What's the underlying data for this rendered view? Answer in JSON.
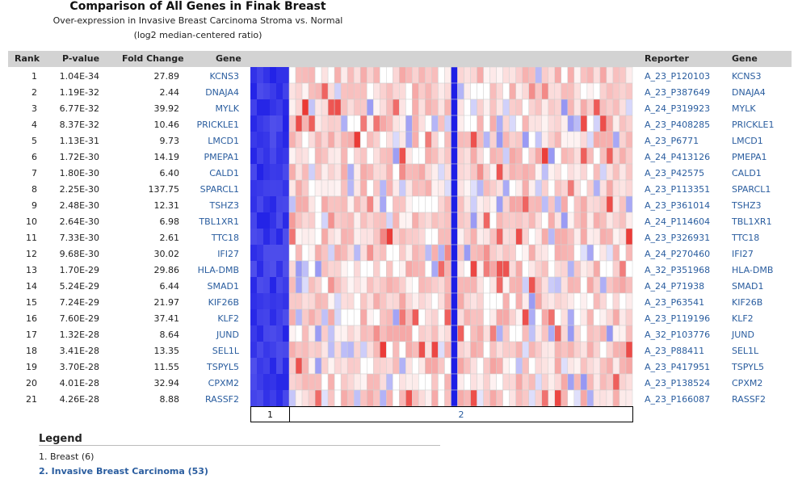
{
  "header": {
    "title": "Comparison of All Genes in Finak Breast",
    "subtitle": "Over-expression in Invasive Breast Carcinoma Stroma vs. Normal",
    "subtitle2": "(log2 median-centered ratio)"
  },
  "columns": {
    "rank": "Rank",
    "pvalue": "P-value",
    "fold": "Fold Change",
    "gene": "Gene",
    "reporter": "Reporter",
    "gene2": "Gene"
  },
  "rows": [
    {
      "rank": "1",
      "pvalue": "1.04E-34",
      "fold": "27.89",
      "gene": "KCNS3",
      "reporter": "A_23_P120103"
    },
    {
      "rank": "2",
      "pvalue": "1.19E-32",
      "fold": "2.44",
      "gene": "DNAJA4",
      "reporter": "A_23_P387649"
    },
    {
      "rank": "3",
      "pvalue": "6.77E-32",
      "fold": "39.92",
      "gene": "MYLK",
      "reporter": "A_24_P319923"
    },
    {
      "rank": "4",
      "pvalue": "8.37E-32",
      "fold": "10.46",
      "gene": "PRICKLE1",
      "reporter": "A_23_P408285"
    },
    {
      "rank": "5",
      "pvalue": "1.13E-31",
      "fold": "9.73",
      "gene": "LMCD1",
      "reporter": "A_23_P6771"
    },
    {
      "rank": "6",
      "pvalue": "1.72E-30",
      "fold": "14.19",
      "gene": "PMEPA1",
      "reporter": "A_24_P413126"
    },
    {
      "rank": "7",
      "pvalue": "1.80E-30",
      "fold": "6.40",
      "gene": "CALD1",
      "reporter": "A_23_P42575"
    },
    {
      "rank": "8",
      "pvalue": "2.25E-30",
      "fold": "137.75",
      "gene": "SPARCL1",
      "reporter": "A_23_P113351"
    },
    {
      "rank": "9",
      "pvalue": "2.48E-30",
      "fold": "12.31",
      "gene": "TSHZ3",
      "reporter": "A_23_P361014"
    },
    {
      "rank": "10",
      "pvalue": "2.64E-30",
      "fold": "6.98",
      "gene": "TBL1XR1",
      "reporter": "A_24_P114604"
    },
    {
      "rank": "11",
      "pvalue": "7.33E-30",
      "fold": "2.61",
      "gene": "TTC18",
      "reporter": "A_23_P326931"
    },
    {
      "rank": "12",
      "pvalue": "9.68E-30",
      "fold": "30.02",
      "gene": "IFI27",
      "reporter": "A_24_P270460"
    },
    {
      "rank": "13",
      "pvalue": "1.70E-29",
      "fold": "29.86",
      "gene": "HLA-DMB",
      "reporter": "A_32_P351968"
    },
    {
      "rank": "14",
      "pvalue": "5.24E-29",
      "fold": "6.44",
      "gene": "SMAD1",
      "reporter": "A_24_P71938"
    },
    {
      "rank": "15",
      "pvalue": "7.24E-29",
      "fold": "21.97",
      "gene": "KIF26B",
      "reporter": "A_23_P63541"
    },
    {
      "rank": "16",
      "pvalue": "7.60E-29",
      "fold": "37.41",
      "gene": "KLF2",
      "reporter": "A_23_P119196"
    },
    {
      "rank": "17",
      "pvalue": "1.32E-28",
      "fold": "8.64",
      "gene": "JUND",
      "reporter": "A_32_P103776"
    },
    {
      "rank": "18",
      "pvalue": "3.41E-28",
      "fold": "13.35",
      "gene": "SEL1L",
      "reporter": "A_23_P88411"
    },
    {
      "rank": "19",
      "pvalue": "3.70E-28",
      "fold": "11.55",
      "gene": "TSPYL5",
      "reporter": "A_23_P417951"
    },
    {
      "rank": "20",
      "pvalue": "4.01E-28",
      "fold": "32.94",
      "gene": "CPXM2",
      "reporter": "A_23_P138524"
    },
    {
      "rank": "21",
      "pvalue": "4.26E-28",
      "fold": "8.88",
      "gene": "RASSF2",
      "reporter": "A_23_P166087"
    }
  ],
  "groups": [
    {
      "label": "1",
      "samples": 6
    },
    {
      "label": "2",
      "samples": 53
    }
  ],
  "legend": {
    "title": "Legend",
    "items": [
      "1. Breast (6)",
      "2. Invasive Breast Carcinoma (53)"
    ]
  },
  "colors": {
    "accent_link": "#2a5d9f",
    "high": "#e8201c",
    "low": "#1e1ee6",
    "neutral": "#ffffff"
  },
  "chart_data": {
    "type": "heatmap",
    "rows": [
      "KCNS3",
      "DNAJA4",
      "MYLK",
      "PRICKLE1",
      "LMCD1",
      "PMEPA1",
      "CALD1",
      "SPARCL1",
      "TSHZ3",
      "TBL1XR1",
      "TTC18",
      "IFI27",
      "HLA-DMB",
      "SMAD1",
      "KIF26B",
      "KLF2",
      "JUND",
      "SEL1L",
      "TSPYL5",
      "CPXM2",
      "RASSF2"
    ],
    "groups": [
      "1",
      "2"
    ],
    "group_sizes": [
      6,
      53
    ],
    "value_range": [
      -2,
      2
    ],
    "highlight_column": 25
  }
}
